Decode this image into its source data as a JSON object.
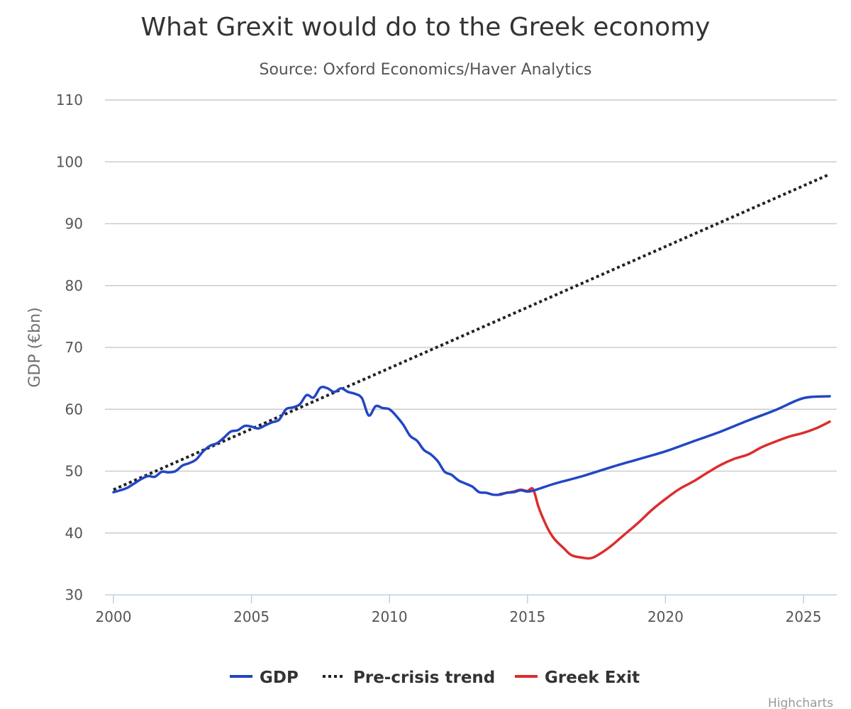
{
  "chart_data": {
    "type": "line",
    "title": "What Grexit would do to the Greek economy",
    "subtitle": "Source: Oxford Economics/Haver Analytics",
    "xlabel": "",
    "ylabel": "GDP (€bn)",
    "xlim": [
      2000,
      2026
    ],
    "ylim": [
      30,
      110
    ],
    "x_ticks": [
      2000,
      2005,
      2010,
      2015,
      2020,
      2025
    ],
    "y_ticks": [
      30,
      40,
      50,
      60,
      70,
      80,
      90,
      100,
      110
    ],
    "grid": true,
    "legend": "bottom-center",
    "credit": "Highcharts",
    "series": [
      {
        "name": "GDP",
        "color": "#2346c4",
        "dash": "solid",
        "points": [
          [
            2000.0,
            46.6
          ],
          [
            2000.25,
            46.9
          ],
          [
            2000.5,
            47.3
          ],
          [
            2000.75,
            48.0
          ],
          [
            2001.0,
            48.7
          ],
          [
            2001.25,
            49.2
          ],
          [
            2001.5,
            49.1
          ],
          [
            2001.75,
            49.9
          ],
          [
            2002.0,
            49.8
          ],
          [
            2002.25,
            50.0
          ],
          [
            2002.5,
            50.9
          ],
          [
            2002.75,
            51.3
          ],
          [
            2003.0,
            51.9
          ],
          [
            2003.25,
            53.2
          ],
          [
            2003.5,
            54.1
          ],
          [
            2003.75,
            54.5
          ],
          [
            2004.0,
            55.4
          ],
          [
            2004.25,
            56.4
          ],
          [
            2004.5,
            56.6
          ],
          [
            2004.75,
            57.3
          ],
          [
            2005.0,
            57.2
          ],
          [
            2005.25,
            56.9
          ],
          [
            2005.5,
            57.4
          ],
          [
            2005.75,
            57.9
          ],
          [
            2006.0,
            58.3
          ],
          [
            2006.25,
            60.0
          ],
          [
            2006.5,
            60.3
          ],
          [
            2006.75,
            60.8
          ],
          [
            2007.0,
            62.3
          ],
          [
            2007.25,
            61.9
          ],
          [
            2007.5,
            63.5
          ],
          [
            2007.75,
            63.4
          ],
          [
            2008.0,
            62.8
          ],
          [
            2008.25,
            63.4
          ],
          [
            2008.5,
            62.8
          ],
          [
            2008.75,
            62.5
          ],
          [
            2009.0,
            61.8
          ],
          [
            2009.25,
            59.0
          ],
          [
            2009.5,
            60.5
          ],
          [
            2009.75,
            60.2
          ],
          [
            2010.0,
            60.0
          ],
          [
            2010.25,
            58.9
          ],
          [
            2010.5,
            57.5
          ],
          [
            2010.75,
            55.7
          ],
          [
            2011.0,
            54.9
          ],
          [
            2011.25,
            53.4
          ],
          [
            2011.5,
            52.7
          ],
          [
            2011.75,
            51.6
          ],
          [
            2012.0,
            49.9
          ],
          [
            2012.25,
            49.4
          ],
          [
            2012.5,
            48.5
          ],
          [
            2012.75,
            48.0
          ],
          [
            2013.0,
            47.5
          ],
          [
            2013.25,
            46.6
          ],
          [
            2013.5,
            46.5
          ],
          [
            2013.75,
            46.2
          ],
          [
            2014.0,
            46.2
          ],
          [
            2014.25,
            46.5
          ],
          [
            2014.5,
            46.6
          ],
          [
            2014.75,
            46.9
          ],
          [
            2015.0,
            46.7
          ],
          [
            2015.25,
            46.9
          ],
          [
            2016.0,
            48.0
          ],
          [
            2017.0,
            49.2
          ],
          [
            2018.0,
            50.6
          ],
          [
            2019.0,
            51.9
          ],
          [
            2020.0,
            53.2
          ],
          [
            2021.0,
            54.8
          ],
          [
            2022.0,
            56.4
          ],
          [
            2023.0,
            58.2
          ],
          [
            2024.0,
            59.9
          ],
          [
            2025.0,
            61.8
          ],
          [
            2025.95,
            62.1
          ]
        ]
      },
      {
        "name": "Pre-crisis trend",
        "color": "#222222",
        "dash": "dotted",
        "points": [
          [
            2000.0,
            47.0
          ],
          [
            2025.95,
            98.0
          ]
        ]
      },
      {
        "name": "Greek Exit",
        "color": "#dc2d2d",
        "dash": "solid",
        "points": [
          [
            2014.0,
            46.3
          ],
          [
            2014.25,
            46.5
          ],
          [
            2014.5,
            46.7
          ],
          [
            2014.75,
            47.0
          ],
          [
            2015.0,
            46.8
          ],
          [
            2015.2,
            47.1
          ],
          [
            2015.4,
            44.2
          ],
          [
            2015.6,
            42.0
          ],
          [
            2015.8,
            40.2
          ],
          [
            2016.0,
            38.9
          ],
          [
            2016.3,
            37.6
          ],
          [
            2016.6,
            36.4
          ],
          [
            2017.0,
            36.0
          ],
          [
            2017.25,
            35.9
          ],
          [
            2017.5,
            36.3
          ],
          [
            2018.0,
            37.8
          ],
          [
            2018.5,
            39.7
          ],
          [
            2019.0,
            41.6
          ],
          [
            2019.5,
            43.7
          ],
          [
            2020.0,
            45.5
          ],
          [
            2020.5,
            47.1
          ],
          [
            2021.0,
            48.3
          ],
          [
            2021.5,
            49.7
          ],
          [
            2022.0,
            51.0
          ],
          [
            2022.5,
            52.0
          ],
          [
            2023.0,
            52.7
          ],
          [
            2023.5,
            53.9
          ],
          [
            2024.0,
            54.8
          ],
          [
            2024.5,
            55.6
          ],
          [
            2025.0,
            56.2
          ],
          [
            2025.5,
            57.0
          ],
          [
            2025.95,
            58.0
          ]
        ]
      }
    ]
  }
}
